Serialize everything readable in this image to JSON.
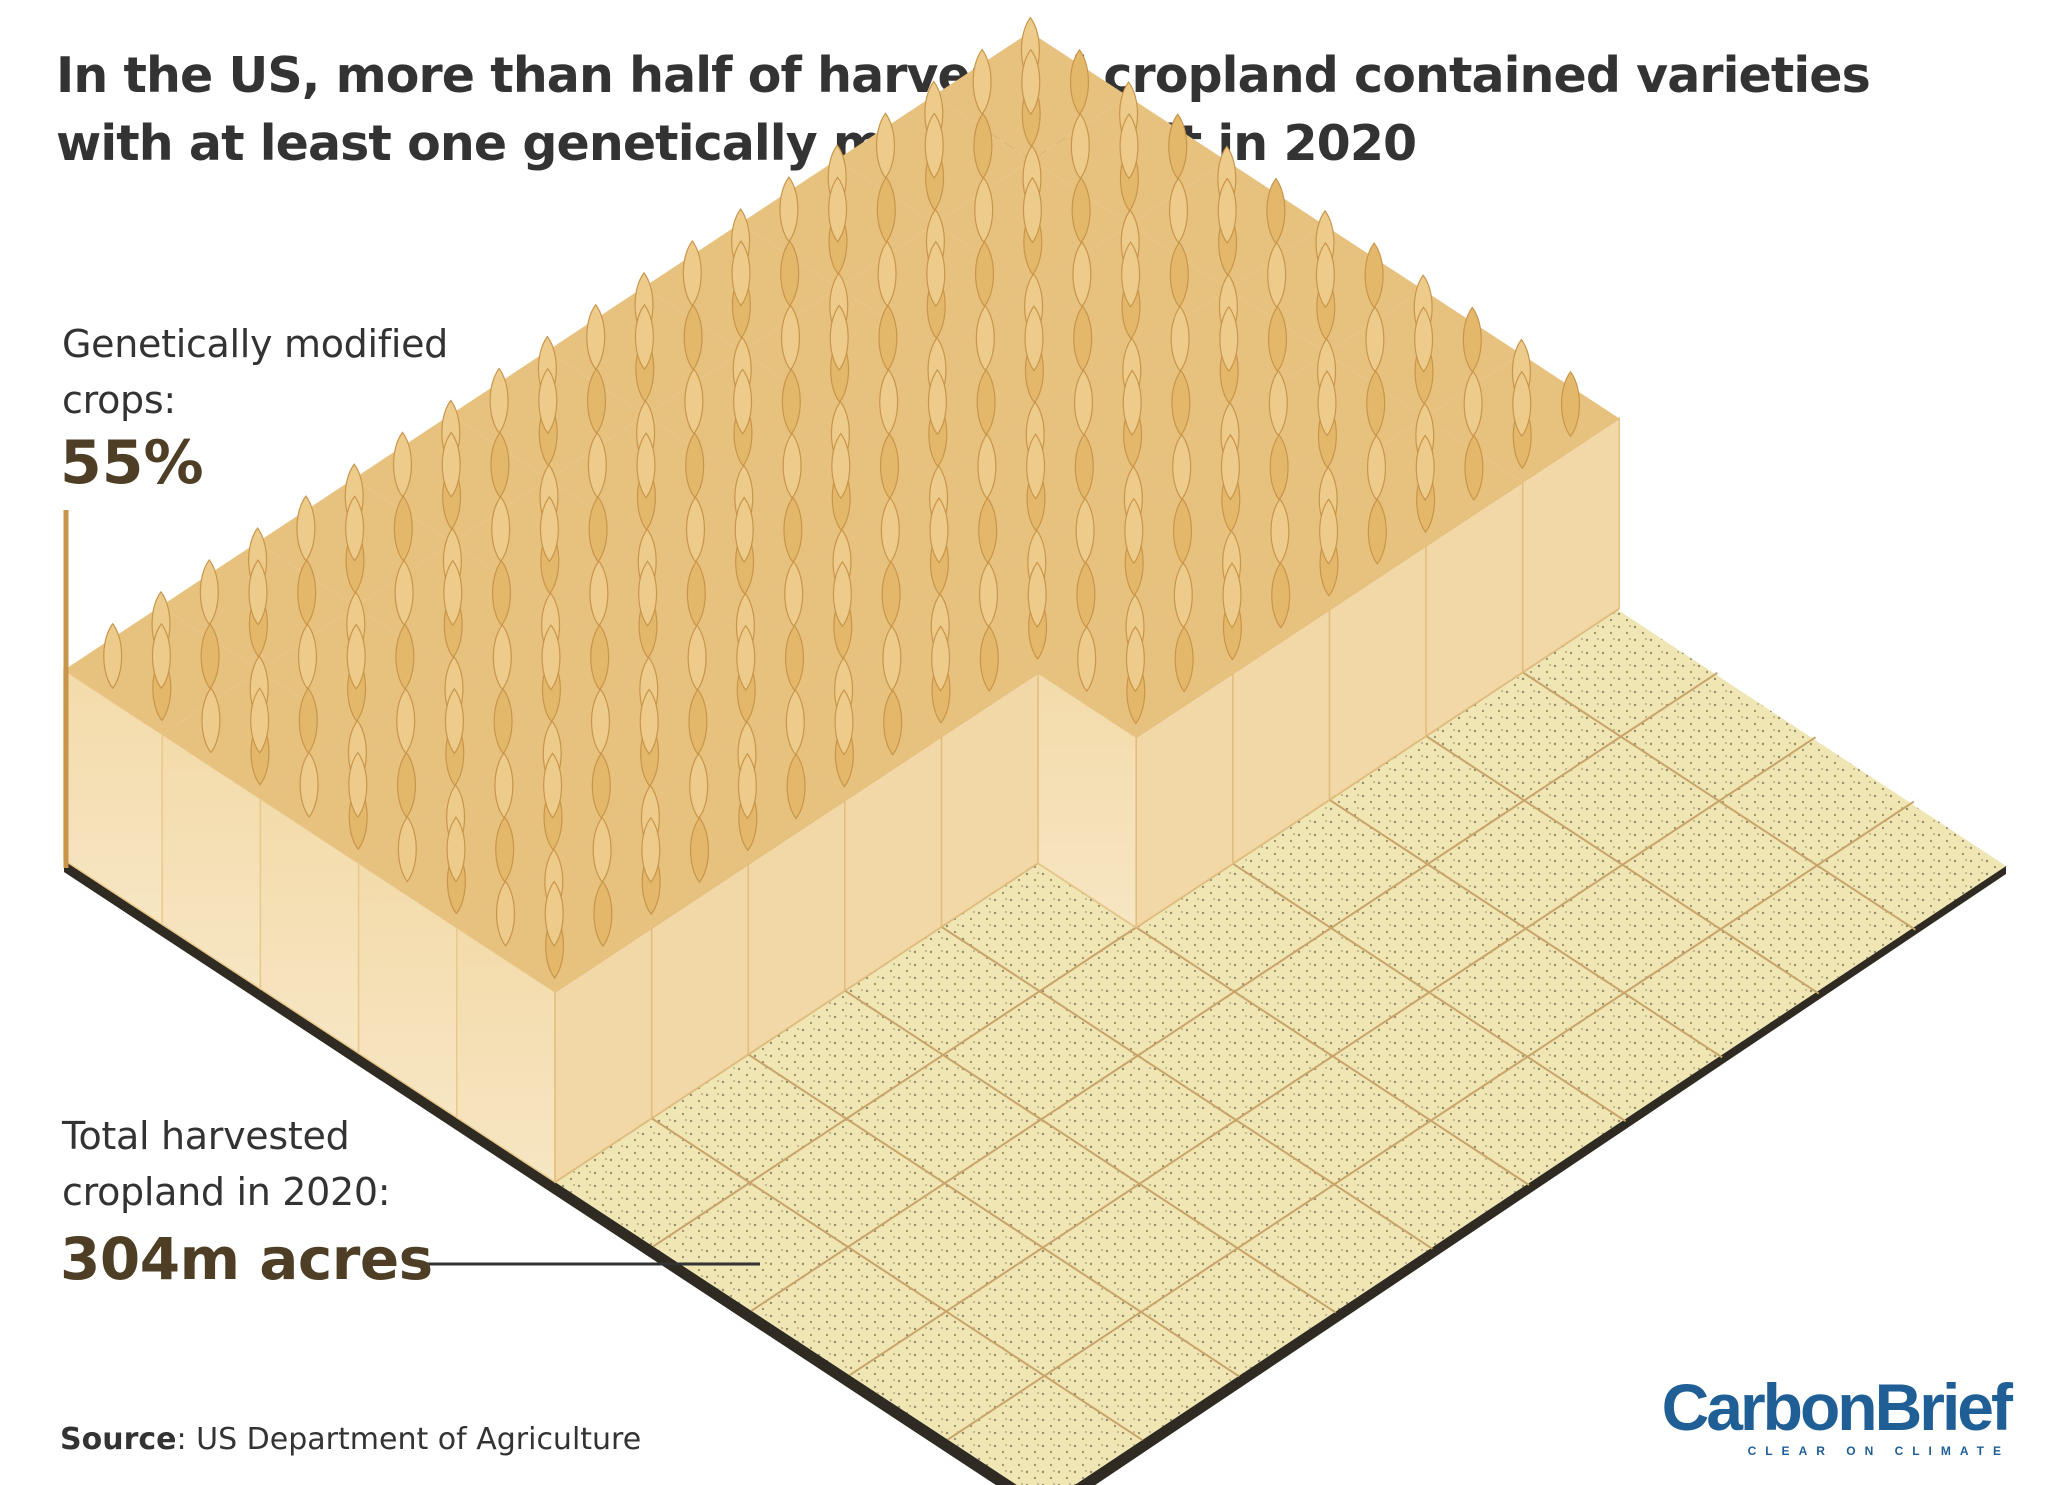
{
  "title": "In the US, more than half of harvested cropland contained varieties with at least one genetically modified trait in 2020",
  "genetically_modified": {
    "label": "Genetically modified crops:",
    "value": "55%",
    "share": 0.55
  },
  "total": {
    "label": "Total harvested cropland in 2020:",
    "value": "304m acres"
  },
  "source": {
    "prefix": "Source",
    "text": ": US Department of Agriculture"
  },
  "logo": {
    "name": "CarbonBrief",
    "tagline": "CLEAR ON CLIMATE"
  },
  "colors": {
    "wheat": "#e3b86b",
    "wheat_dark": "#c9954a",
    "field": "#efe6b4",
    "field_lines": "#c9a46a",
    "soil": "#2f2a22",
    "accent_text": "#4d3e25",
    "brand": "#1f5f95"
  }
}
